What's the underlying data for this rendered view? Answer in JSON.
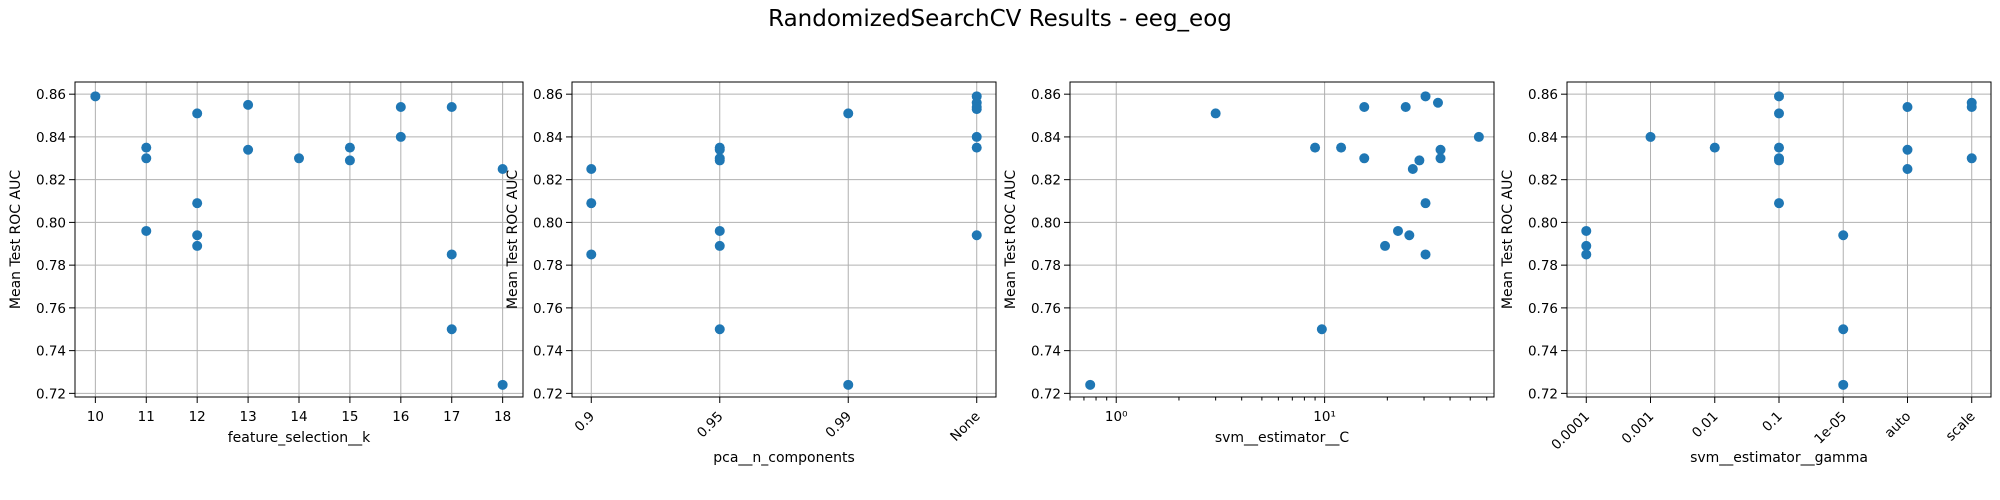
{
  "figure": {
    "title": "RandomizedSearchCV Results - eeg_eog"
  },
  "colors": {
    "marker": "#1f77b4",
    "grid": "#b0b0b0",
    "axis": "#000000"
  },
  "chart_data": [
    {
      "type": "scatter",
      "xlabel": "feature_selection__k",
      "ylabel": "Mean Test ROC AUC",
      "x_scale": "linear",
      "xlim": [
        9.6,
        18.4
      ],
      "ylim": [
        0.7183,
        0.8657
      ],
      "x_ticks": [
        10,
        11,
        12,
        13,
        14,
        15,
        16,
        17,
        18
      ],
      "x_tick_labels": [
        "10",
        "11",
        "12",
        "13",
        "14",
        "15",
        "16",
        "17",
        "18"
      ],
      "y_ticks": [
        0.72,
        0.74,
        0.76,
        0.78,
        0.8,
        0.82,
        0.84,
        0.86
      ],
      "y_tick_labels": [
        "0.72",
        "0.74",
        "0.76",
        "0.78",
        "0.80",
        "0.82",
        "0.84",
        "0.86"
      ],
      "grid": true,
      "points": [
        {
          "x": 10,
          "y": 0.859
        },
        {
          "x": 11,
          "y": 0.835
        },
        {
          "x": 11,
          "y": 0.83
        },
        {
          "x": 11,
          "y": 0.796
        },
        {
          "x": 12,
          "y": 0.851
        },
        {
          "x": 12,
          "y": 0.809
        },
        {
          "x": 12,
          "y": 0.794
        },
        {
          "x": 12,
          "y": 0.789
        },
        {
          "x": 13,
          "y": 0.855
        },
        {
          "x": 13,
          "y": 0.834
        },
        {
          "x": 14,
          "y": 0.83
        },
        {
          "x": 15,
          "y": 0.835
        },
        {
          "x": 15,
          "y": 0.829
        },
        {
          "x": 16,
          "y": 0.854
        },
        {
          "x": 16,
          "y": 0.84
        },
        {
          "x": 17,
          "y": 0.854
        },
        {
          "x": 17,
          "y": 0.785
        },
        {
          "x": 17,
          "y": 0.75
        },
        {
          "x": 18,
          "y": 0.825
        },
        {
          "x": 18,
          "y": 0.724
        }
      ]
    },
    {
      "type": "scatter",
      "xlabel": "pca__n_components",
      "ylabel": "Mean Test ROC AUC",
      "x_scale": "categorical",
      "categories": [
        "0.9",
        "0.95",
        "0.99",
        "None"
      ],
      "xlim": [
        -0.15,
        3.15
      ],
      "ylim": [
        0.7183,
        0.8657
      ],
      "x_tick_labels": [
        "0.9",
        "0.95",
        "0.99",
        "None"
      ],
      "x_tick_rotation": 45,
      "y_ticks": [
        0.72,
        0.74,
        0.76,
        0.78,
        0.8,
        0.82,
        0.84,
        0.86
      ],
      "y_tick_labels": [
        "0.72",
        "0.74",
        "0.76",
        "0.78",
        "0.80",
        "0.82",
        "0.84",
        "0.86"
      ],
      "grid": true,
      "points": [
        {
          "x": "0.9",
          "y": 0.825
        },
        {
          "x": "0.9",
          "y": 0.809
        },
        {
          "x": "0.9",
          "y": 0.785
        },
        {
          "x": "0.95",
          "y": 0.835
        },
        {
          "x": "0.95",
          "y": 0.834
        },
        {
          "x": "0.95",
          "y": 0.83
        },
        {
          "x": "0.95",
          "y": 0.829
        },
        {
          "x": "0.95",
          "y": 0.796
        },
        {
          "x": "0.95",
          "y": 0.789
        },
        {
          "x": "0.95",
          "y": 0.75
        },
        {
          "x": "0.99",
          "y": 0.851
        },
        {
          "x": "0.99",
          "y": 0.724
        },
        {
          "x": "None",
          "y": 0.859
        },
        {
          "x": "None",
          "y": 0.856
        },
        {
          "x": "None",
          "y": 0.854
        },
        {
          "x": "None",
          "y": 0.853
        },
        {
          "x": "None",
          "y": 0.84
        },
        {
          "x": "None",
          "y": 0.835
        },
        {
          "x": "None",
          "y": 0.794
        }
      ]
    },
    {
      "type": "scatter",
      "xlabel": "svm__estimator__C",
      "ylabel": "Mean Test ROC AUC",
      "x_scale": "log",
      "xlim": [
        0.6,
        65
      ],
      "ylim": [
        0.7183,
        0.8657
      ],
      "x_ticks": [
        1,
        10
      ],
      "x_tick_labels": [
        "10⁰",
        "10¹"
      ],
      "y_ticks": [
        0.72,
        0.74,
        0.76,
        0.78,
        0.8,
        0.82,
        0.84,
        0.86
      ],
      "y_tick_labels": [
        "0.72",
        "0.74",
        "0.76",
        "0.78",
        "0.80",
        "0.82",
        "0.84",
        "0.86"
      ],
      "grid": true,
      "points": [
        {
          "x": 0.75,
          "y": 0.724
        },
        {
          "x": 3.0,
          "y": 0.851
        },
        {
          "x": 9.0,
          "y": 0.835
        },
        {
          "x": 9.7,
          "y": 0.75
        },
        {
          "x": 12.0,
          "y": 0.835
        },
        {
          "x": 15.5,
          "y": 0.854
        },
        {
          "x": 15.5,
          "y": 0.83
        },
        {
          "x": 19.5,
          "y": 0.789
        },
        {
          "x": 22.5,
          "y": 0.796
        },
        {
          "x": 24.5,
          "y": 0.854
        },
        {
          "x": 25.5,
          "y": 0.794
        },
        {
          "x": 26.5,
          "y": 0.825
        },
        {
          "x": 28.5,
          "y": 0.829
        },
        {
          "x": 30.5,
          "y": 0.859
        },
        {
          "x": 30.5,
          "y": 0.809
        },
        {
          "x": 30.5,
          "y": 0.785
        },
        {
          "x": 35.0,
          "y": 0.856
        },
        {
          "x": 36.0,
          "y": 0.834
        },
        {
          "x": 36.0,
          "y": 0.83
        },
        {
          "x": 55.0,
          "y": 0.84
        }
      ]
    },
    {
      "type": "scatter",
      "xlabel": "svm__estimator__gamma",
      "ylabel": "Mean Test ROC AUC",
      "x_scale": "categorical",
      "categories": [
        "0.0001",
        "0.001",
        "0.01",
        "0.1",
        "1e-05",
        "auto",
        "scale"
      ],
      "xlim": [
        -0.3,
        6.3
      ],
      "ylim": [
        0.7183,
        0.8657
      ],
      "x_tick_labels": [
        "0.0001",
        "0.001",
        "0.01",
        "0.1",
        "1e-05",
        "auto",
        "scale"
      ],
      "x_tick_rotation": 45,
      "y_ticks": [
        0.72,
        0.74,
        0.76,
        0.78,
        0.8,
        0.82,
        0.84,
        0.86
      ],
      "y_tick_labels": [
        "0.72",
        "0.74",
        "0.76",
        "0.78",
        "0.80",
        "0.82",
        "0.84",
        "0.86"
      ],
      "grid": true,
      "points": [
        {
          "x": "0.0001",
          "y": 0.796
        },
        {
          "x": "0.0001",
          "y": 0.789
        },
        {
          "x": "0.0001",
          "y": 0.785
        },
        {
          "x": "0.001",
          "y": 0.84
        },
        {
          "x": "0.01",
          "y": 0.835
        },
        {
          "x": "0.1",
          "y": 0.859
        },
        {
          "x": "0.1",
          "y": 0.851
        },
        {
          "x": "0.1",
          "y": 0.835
        },
        {
          "x": "0.1",
          "y": 0.83
        },
        {
          "x": "0.1",
          "y": 0.829
        },
        {
          "x": "0.1",
          "y": 0.809
        },
        {
          "x": "1e-05",
          "y": 0.794
        },
        {
          "x": "1e-05",
          "y": 0.75
        },
        {
          "x": "1e-05",
          "y": 0.724
        },
        {
          "x": "auto",
          "y": 0.854
        },
        {
          "x": "auto",
          "y": 0.834
        },
        {
          "x": "auto",
          "y": 0.825
        },
        {
          "x": "scale",
          "y": 0.856
        },
        {
          "x": "scale",
          "y": 0.854
        },
        {
          "x": "scale",
          "y": 0.83
        }
      ]
    }
  ]
}
